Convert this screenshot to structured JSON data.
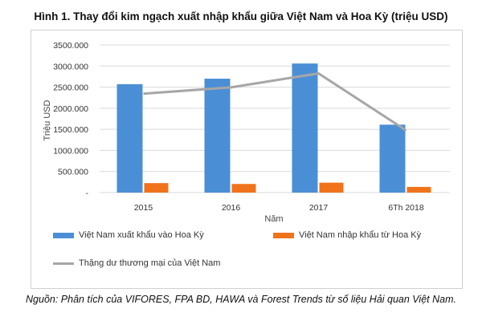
{
  "title": "Hình 1. Thay đổi kim ngạch xuất nhập khẩu giữa Việt Nam và Hoa Kỳ (triệu USD)",
  "source": "Nguồn: Phân tích của VIFORES, FPA BD, HAWA và Forest Trends từ số liệu Hải quan Việt Nam.",
  "colors": {
    "export": "#4a8fd6",
    "import": "#f0731c",
    "surplus": "#a6a6a6"
  },
  "chart_data": {
    "type": "bar",
    "title": "Hình 1. Thay đổi kim ngạch xuất nhập khẩu giữa Việt Nam và Hoa Kỳ (triệu USD)",
    "xlabel": "Năm",
    "ylabel": "Triệu USD",
    "categories": [
      "2015",
      "2016",
      "2017",
      "6Th 2018"
    ],
    "ylim": [
      0,
      3500
    ],
    "yticks": [
      0,
      500,
      1000,
      1500,
      2000,
      2500,
      3000,
      3500
    ],
    "ytick_labels": [
      "-",
      "500.000",
      "1000.000",
      "1500.000",
      "2000.000",
      "2500.000",
      "3000.000",
      "3500.000"
    ],
    "grid": true,
    "legend_position": "bottom",
    "series": [
      {
        "name": "Việt Nam xuất khẩu vào Hoa Kỳ",
        "type": "bar",
        "values": [
          2570,
          2700,
          3060,
          1610
        ]
      },
      {
        "name": "Việt Nam nhập khẩu từ Hoa Kỳ",
        "type": "bar",
        "values": [
          225,
          205,
          235,
          135
        ]
      },
      {
        "name": "Thặng dư thương mại của Việt Nam",
        "type": "line",
        "values": [
          2345,
          2495,
          2825,
          1475
        ]
      }
    ]
  }
}
